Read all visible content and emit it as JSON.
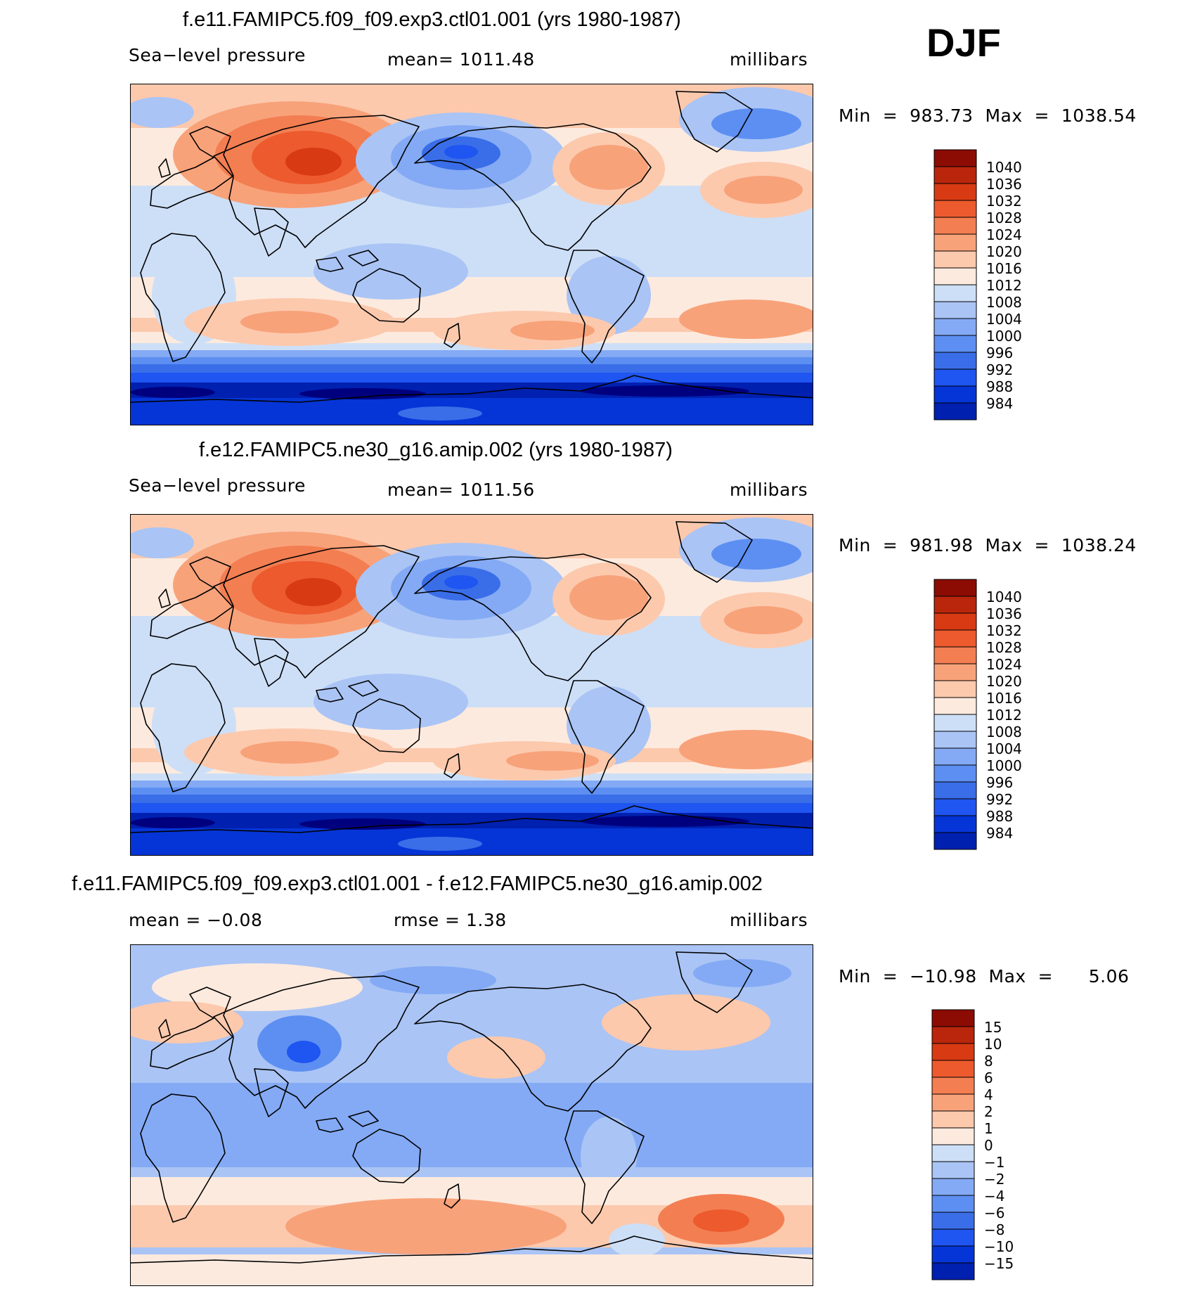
{
  "season": "DJF",
  "colors": {
    "scale": [
      "#00007f",
      "#0020b0",
      "#0535d6",
      "#1f55f0",
      "#3a6ee8",
      "#5d8ff2",
      "#84aaf5",
      "#aac4f5",
      "#cddff7",
      "#fdeade",
      "#fcc9ad",
      "#f8a27a",
      "#f37e52",
      "#ec5a2d",
      "#d83a14",
      "#b9260c",
      "#8c0c04"
    ]
  },
  "panels": [
    {
      "id": "model1",
      "title": "f.e11.FAMIPC5.f09_f09.exp3.ctl01.001 (yrs 1980-1987)",
      "left_label": "Sea−level pressure",
      "center_label": "mean=  1011.48",
      "units": "millibars",
      "minmax": "Min  =  983.73  Max  =  1038.54",
      "kind": "abs"
    },
    {
      "id": "model2",
      "title": "f.e12.FAMIPC5.ne30_g16.amip.002 (yrs 1980-1987)",
      "left_label": "Sea−level pressure",
      "center_label": "mean=  1011.56",
      "units": "millibars",
      "minmax": "Min  =  981.98  Max  =  1038.24",
      "kind": "abs"
    },
    {
      "id": "difference",
      "title": "f.e11.FAMIPC5.f09_f09.exp3.ctl01.001 - f.e12.FAMIPC5.ne30_g16.amip.002",
      "left_label": "mean  =    −0.08",
      "center_label": "rmse  =     1.38",
      "units": "millibars",
      "minmax": "Min  =  −10.98  Max  =      5.06",
      "kind": "diff"
    }
  ],
  "chart_data": [
    {
      "type": "heatmap",
      "title": "f.e11.FAMIPC5.f09_f09.exp3.ctl01.001 (yrs 1980-1987)",
      "variable": "Sea-level pressure",
      "units": "millibars",
      "mean": 1011.48,
      "min": 983.73,
      "max": 1038.54,
      "colorbar_levels": [
        1040,
        1036,
        1032,
        1028,
        1024,
        1020,
        1016,
        1012,
        1008,
        1004,
        1000,
        996,
        992,
        988,
        984
      ],
      "colorbar_tick_labels": [
        "1040",
        "1036",
        "1032",
        "1028",
        "1024",
        "1020",
        "1016",
        "1012",
        "1008",
        "1004",
        "1000",
        "996",
        "992",
        "988",
        "984"
      ]
    },
    {
      "type": "heatmap",
      "title": "f.e12.FAMIPC5.ne30_g16.amip.002 (yrs 1980-1987)",
      "variable": "Sea-level pressure",
      "units": "millibars",
      "mean": 1011.56,
      "min": 981.98,
      "max": 1038.24,
      "colorbar_levels": [
        1040,
        1036,
        1032,
        1028,
        1024,
        1020,
        1016,
        1012,
        1008,
        1004,
        1000,
        996,
        992,
        988,
        984
      ],
      "colorbar_tick_labels": [
        "1040",
        "1036",
        "1032",
        "1028",
        "1024",
        "1020",
        "1016",
        "1012",
        "1008",
        "1004",
        "1000",
        "996",
        "992",
        "988",
        "984"
      ]
    },
    {
      "type": "heatmap",
      "title": "f.e11.FAMIPC5.f09_f09.exp3.ctl01.001 - f.e12.FAMIPC5.ne30_g16.amip.002",
      "variable": "Sea-level pressure difference",
      "units": "millibars",
      "mean": -0.08,
      "rmse": 1.38,
      "min": -10.98,
      "max": 5.06,
      "colorbar_levels": [
        15,
        10,
        8,
        6,
        4,
        2,
        1,
        0,
        -1,
        -2,
        -4,
        -6,
        -8,
        -10,
        -15
      ],
      "colorbar_tick_labels": [
        "15",
        "10",
        "8",
        "6",
        "4",
        "2",
        "1",
        "0",
        "−1",
        "−2",
        "−4",
        "−6",
        "−8",
        "−10",
        "−15"
      ]
    }
  ]
}
